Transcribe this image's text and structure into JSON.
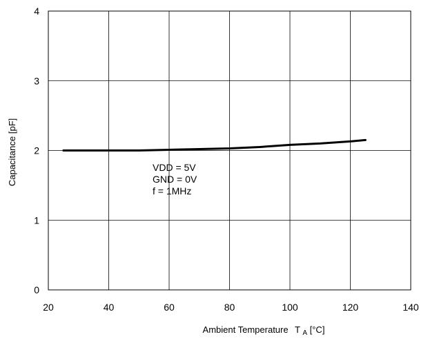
{
  "chart_data": {
    "type": "line",
    "title": "",
    "xlabel": "Ambient Temperature",
    "xlabel_symbol": "T",
    "xlabel_subscript": "A",
    "xlabel_unit": "[°C]",
    "ylabel": "Capacitance [pF]",
    "xlim": [
      20,
      140
    ],
    "ylim": [
      0,
      4
    ],
    "xticks": [
      20,
      40,
      60,
      80,
      100,
      120,
      140
    ],
    "yticks": [
      0,
      1,
      2,
      3,
      4
    ],
    "grid": true,
    "series": [
      {
        "x": [
          25,
          30,
          40,
          50,
          60,
          70,
          80,
          90,
          100,
          110,
          120,
          125
        ],
        "y": [
          2.0,
          2.0,
          2.0,
          2.0,
          2.01,
          2.02,
          2.03,
          2.05,
          2.08,
          2.1,
          2.13,
          2.15
        ],
        "color": "#000000"
      }
    ],
    "annotations": [
      "VDD = 5V",
      "GND = 0V",
      "f = 1MHz"
    ]
  }
}
